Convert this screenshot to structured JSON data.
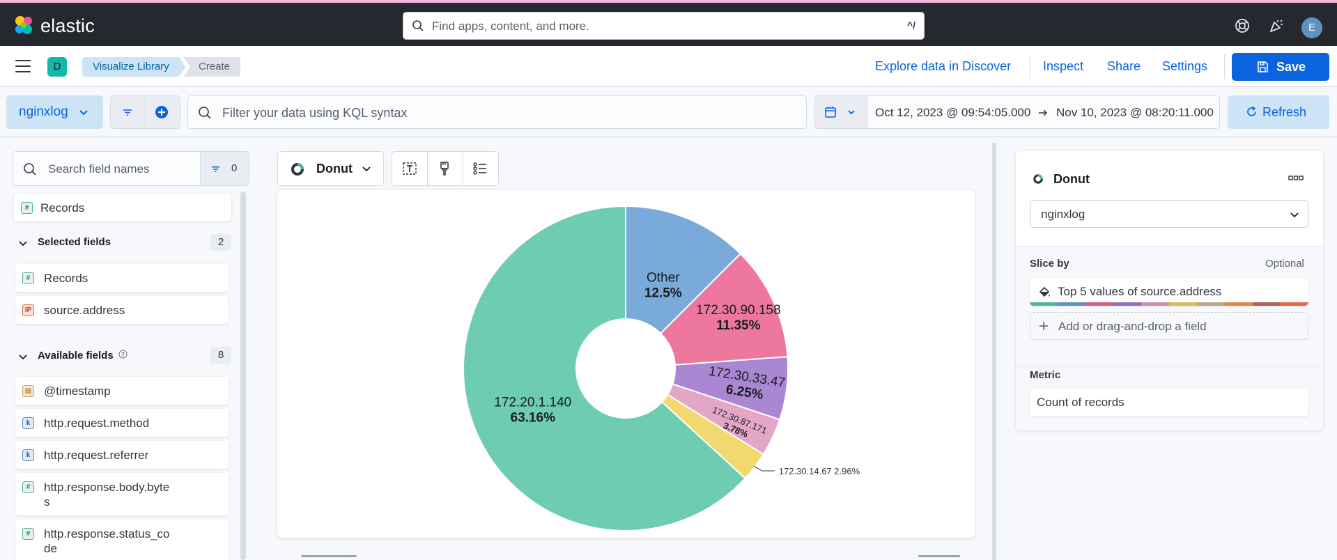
{
  "topbar": {
    "brand": "elastic",
    "search_placeholder": "Find apps, content, and more.",
    "search_shortcut": "^/",
    "avatar_initial": "E"
  },
  "header": {
    "space_initial": "D",
    "breadcrumbs": [
      "Visualize Library",
      "Create"
    ],
    "links": {
      "discover": "Explore data in Discover",
      "inspect": "Inspect",
      "share": "Share",
      "settings": "Settings"
    },
    "save_label": "Save"
  },
  "querybar": {
    "data_view": "nginxlog",
    "kql_placeholder": "Filter your data using KQL syntax",
    "time_start": "Oct 12, 2023 @ 09:54:05.000",
    "time_end": "Nov 10, 2023 @ 08:20:11.000",
    "refresh_label": "Refresh"
  },
  "fields_panel": {
    "search_placeholder": "Search field names",
    "filter_count": "0",
    "records_label": "Records",
    "selected": {
      "label": "Selected fields",
      "count": "2",
      "items": [
        {
          "name": "Records",
          "type": "#"
        },
        {
          "name": "source.address",
          "type": "IP"
        }
      ]
    },
    "available": {
      "label": "Available fields",
      "count": "8",
      "items": [
        {
          "name": "@timestamp",
          "type": "date"
        },
        {
          "name": "http.request.method",
          "type": "k"
        },
        {
          "name": "http.request.referrer",
          "type": "k"
        },
        {
          "name": "http.response.body.byte\ns",
          "type": "#"
        },
        {
          "name": "http.response.status_co\nde",
          "type": "#"
        }
      ]
    }
  },
  "workspace": {
    "vis_type": "Donut"
  },
  "chart_data": {
    "type": "pie",
    "donut": true,
    "slices": [
      {
        "label": "Other",
        "percent": "12.5%",
        "value": 12.5,
        "color": "#79aad9"
      },
      {
        "label": "172.30.90.158",
        "percent": "11.35%",
        "value": 11.35,
        "color": "#ee789d"
      },
      {
        "label": "172.30.33.47",
        "percent": "6.25%",
        "value": 6.25,
        "color": "#a987d1"
      },
      {
        "label": "172.30.87.171",
        "percent": "3.78%",
        "value": 3.78,
        "color": "#e4a6c7"
      },
      {
        "label": "172.30.14.67",
        "percent": "2.96%",
        "value": 2.96,
        "color": "#f1d86f"
      },
      {
        "label": "172.20.1.140",
        "percent": "63.16%",
        "value": 63.16,
        "color": "#6dccb1"
      }
    ]
  },
  "config_panel": {
    "title": "Donut",
    "data_view": "nginxlog",
    "slice_by_label": "Slice by",
    "optional_label": "Optional",
    "dimension_label": "Top 5 values of source.address",
    "add_field_label": "Add or drag-and-drop a field",
    "metric_label": "Metric",
    "metric_value": "Count of records",
    "palette": [
      "#54b399",
      "#6092c0",
      "#d36086",
      "#9170b8",
      "#ca8eae",
      "#d6bf57",
      "#b9a888",
      "#da8b45",
      "#aa6556",
      "#e7664c"
    ]
  }
}
